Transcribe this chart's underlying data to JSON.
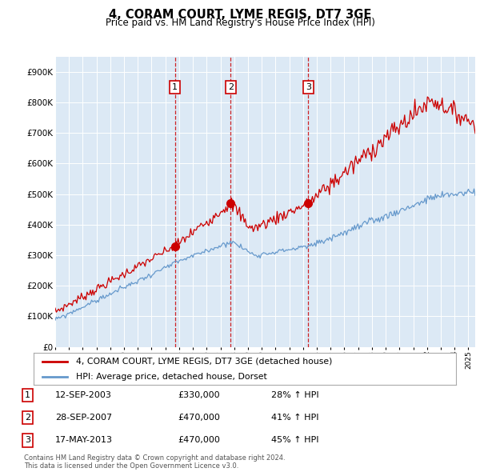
{
  "title": "4, CORAM COURT, LYME REGIS, DT7 3GE",
  "subtitle": "Price paid vs. HM Land Registry's House Price Index (HPI)",
  "plot_bg_color": "#dce9f5",
  "outer_bg_color": "#ffffff",
  "legend_label_red": "4, CORAM COURT, LYME REGIS, DT7 3GE (detached house)",
  "legend_label_blue": "HPI: Average price, detached house, Dorset",
  "footer": "Contains HM Land Registry data © Crown copyright and database right 2024.\nThis data is licensed under the Open Government Licence v3.0.",
  "transactions": [
    {
      "num": 1,
      "date": "12-SEP-2003",
      "price": 330000,
      "hpi_pct": "28%",
      "x": 2003.7
    },
    {
      "num": 2,
      "date": "28-SEP-2007",
      "price": 470000,
      "hpi_pct": "41%",
      "x": 2007.74
    },
    {
      "num": 3,
      "date": "17-MAY-2013",
      "price": 470000,
      "hpi_pct": "45%",
      "x": 2013.38
    }
  ],
  "red_color": "#cc0000",
  "blue_color": "#6699cc",
  "ylim": [
    0,
    950000
  ],
  "xlim": [
    1995.0,
    2025.5
  ],
  "yticks": [
    0,
    100000,
    200000,
    300000,
    400000,
    500000,
    600000,
    700000,
    800000,
    900000
  ],
  "xticks": [
    1995,
    1996,
    1997,
    1998,
    1999,
    2000,
    2001,
    2002,
    2003,
    2004,
    2005,
    2006,
    2007,
    2008,
    2009,
    2010,
    2011,
    2012,
    2013,
    2014,
    2015,
    2016,
    2017,
    2018,
    2019,
    2020,
    2021,
    2022,
    2023,
    2024,
    2025
  ]
}
